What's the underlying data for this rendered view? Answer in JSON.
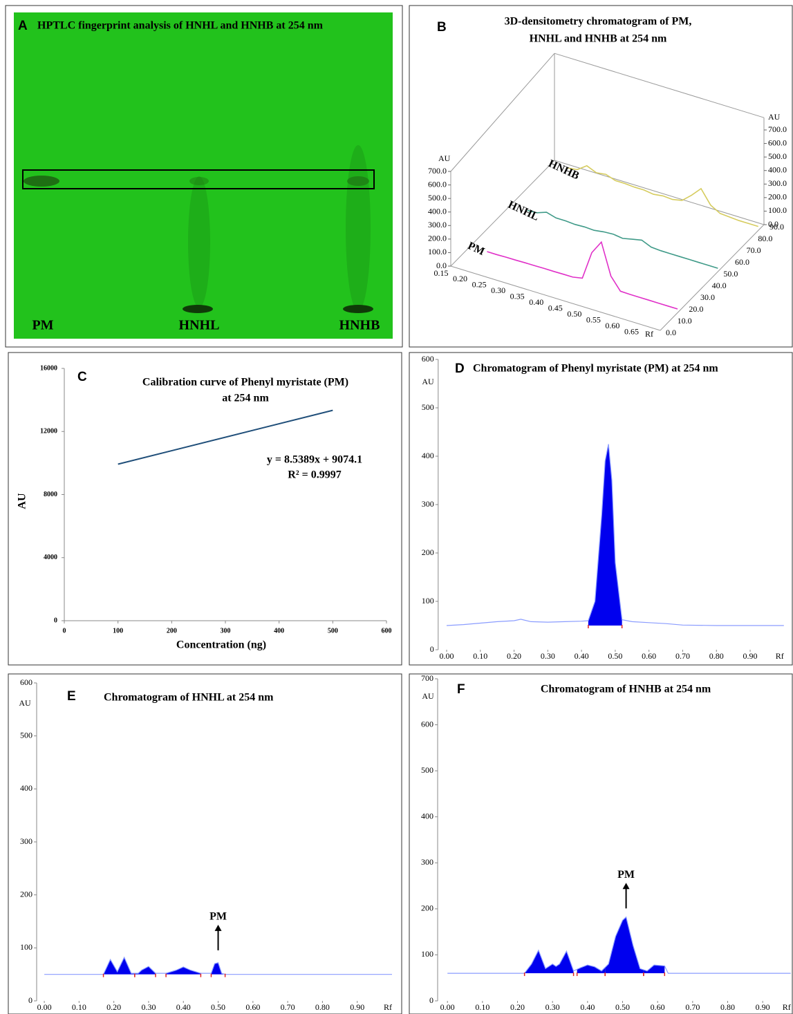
{
  "plate": {
    "letter": "A",
    "title": "HPTLC fingerprint analysis of HNHL and HNHB at 254 nm",
    "lanes": [
      "PM",
      "HNHL",
      "HNHB"
    ]
  },
  "chart_data": [
    {
      "type": "line3d",
      "letter": "B",
      "title": [
        "3D-densitometry chromatogram of PM,",
        "HNHL and HNHB at 254 nm"
      ],
      "ylabel": "AU",
      "xlabel": "Rf",
      "x": [
        0.15,
        0.175,
        0.2,
        0.225,
        0.25,
        0.275,
        0.3,
        0.325,
        0.35,
        0.375,
        0.4,
        0.425,
        0.45,
        0.475,
        0.5,
        0.525,
        0.55,
        0.575,
        0.6,
        0.625,
        0.65,
        0.675,
        0.7
      ],
      "xlim": [
        0.15,
        0.7
      ],
      "xticks": [
        0.15,
        {
          "value": 0.2,
          "label": "0.20"
        },
        0.25,
        {
          "value": 0.3,
          "label": "0.30"
        },
        0.35,
        {
          "value": 0.4,
          "label": "0.40"
        },
        0.45,
        {
          "value": 0.5,
          "label": "0.50"
        },
        0.55,
        {
          "value": 0.6,
          "label": "0.60"
        },
        0.65
      ],
      "ylim": [
        0,
        700
      ],
      "yticks": [
        {
          "value": 0,
          "label": "0.0"
        },
        {
          "value": 100,
          "label": "100.0"
        },
        {
          "value": 200,
          "label": "200.0"
        },
        {
          "value": 300,
          "label": "300.0"
        },
        {
          "value": 400,
          "label": "400.0"
        },
        {
          "value": 500,
          "label": "500.0"
        },
        {
          "value": 600,
          "label": "600.0"
        },
        {
          "value": 700,
          "label": "700.0"
        }
      ],
      "zlim": [
        0,
        90
      ],
      "zticks": [
        {
          "value": 0,
          "label": "0.0"
        },
        {
          "value": 10,
          "label": "10.0"
        },
        {
          "value": 20,
          "label": "20.0"
        },
        {
          "value": 30,
          "label": "30.0"
        },
        {
          "value": 40,
          "label": "40.0"
        },
        {
          "value": 50,
          "label": "50.0"
        },
        {
          "value": 60,
          "label": "60.0"
        },
        {
          "value": 70,
          "label": "70.0"
        },
        {
          "value": 80,
          "label": "80.0"
        },
        {
          "value": 90,
          "label": "90.0"
        }
      ],
      "series": [
        {
          "name": "PM",
          "color": "#e030c8",
          "z": 15,
          "values": [
            null,
            null,
            20,
            20,
            22,
            22,
            24,
            24,
            25,
            25,
            26,
            26,
            40,
            250,
            350,
            120,
            30,
            28,
            28,
            28,
            28,
            28,
            28
          ]
        },
        {
          "name": "HNHL",
          "color": "#3f9a88",
          "z": 50,
          "values": [
            null,
            null,
            20,
            25,
            50,
            30,
            30,
            25,
            28,
            25,
            35,
            40,
            30,
            45,
            60,
            30,
            25,
            25,
            25,
            25,
            25,
            25,
            25
          ]
        },
        {
          "name": "HNHB",
          "color": "#d6cc5e",
          "z": 85,
          "values": [
            null,
            null,
            30,
            40,
            90,
            60,
            70,
            45,
            45,
            40,
            40,
            30,
            40,
            35,
            50,
            110,
            180,
            80,
            40,
            35,
            30,
            30,
            30
          ]
        }
      ]
    },
    {
      "type": "line",
      "letter": "C",
      "title": [
        "Calibration curve of Phenyl myristate (PM)",
        "at 254 nm"
      ],
      "xlabel": "Concentration (ng)",
      "ylabel": "AU",
      "x": [
        100,
        500
      ],
      "xlim": [
        0,
        600
      ],
      "xticks": [
        0,
        100,
        200,
        300,
        400,
        500,
        600
      ],
      "ylim": [
        0,
        16000
      ],
      "yticks": [
        0,
        4000,
        8000,
        12000,
        16000
      ],
      "series": [
        {
          "color": "#1f4e79",
          "values": [
            9928,
            13344
          ]
        }
      ],
      "annotations": [
        "y = 8.5389x + 9074.1",
        "R² = 0.9997"
      ]
    },
    {
      "type": "chromatogram",
      "letter": "D",
      "title": "Chromatogram of Phenyl myristate (PM) at 254 nm",
      "ylabel": "AU",
      "xlabel": "Rf",
      "color": "#8a9cff",
      "fill_color": "#0000ee",
      "baseline": 50,
      "x": [
        0,
        0.05,
        0.1,
        0.15,
        0.2,
        0.22,
        0.25,
        0.3,
        0.35,
        0.4,
        0.42,
        0.44,
        0.46,
        0.47,
        0.48,
        0.49,
        0.5,
        0.52,
        0.55,
        0.6,
        0.65,
        0.7,
        0.8,
        0.9,
        1.0
      ],
      "values": [
        50,
        52,
        55,
        58,
        60,
        63,
        58,
        57,
        58,
        59,
        60,
        100,
        280,
        390,
        425,
        350,
        180,
        62,
        58,
        56,
        54,
        51,
        50,
        50,
        50
      ],
      "peaks": [
        [
          0.42,
          0.52
        ]
      ],
      "xlim": [
        -0.025,
        1.0
      ],
      "xticks": [
        {
          "value": 0,
          "label": "0.00"
        },
        {
          "value": 0.1,
          "label": "0.10"
        },
        {
          "value": 0.2,
          "label": "0.20"
        },
        {
          "value": 0.3,
          "label": "0.30"
        },
        {
          "value": 0.4,
          "label": "0.40"
        },
        {
          "value": 0.5,
          "label": "0.50"
        },
        {
          "value": 0.6,
          "label": "0.60"
        },
        {
          "value": 0.7,
          "label": "0.70"
        },
        {
          "value": 0.8,
          "label": "0.80"
        },
        {
          "value": 0.9,
          "label": "0.90"
        }
      ],
      "ylim": [
        0,
        600
      ],
      "yticks": [
        0,
        100,
        200,
        300,
        400,
        500,
        600
      ]
    },
    {
      "type": "chromatogram",
      "letter": "E",
      "title": "Chromatogram of HNHL at 254 nm",
      "ylabel": "AU",
      "xlabel": "Rf",
      "color": "#8a9cff",
      "fill_color": "#0000ee",
      "baseline": 50,
      "x": [
        0,
        0.1,
        0.17,
        0.19,
        0.21,
        0.23,
        0.25,
        0.27,
        0.28,
        0.3,
        0.32,
        0.35,
        0.38,
        0.4,
        0.42,
        0.45,
        0.48,
        0.49,
        0.5,
        0.51,
        0.52,
        0.6,
        0.8,
        1.0
      ],
      "values": [
        50,
        50,
        50,
        78,
        55,
        82,
        52,
        52,
        58,
        65,
        52,
        52,
        58,
        64,
        58,
        52,
        52,
        70,
        72,
        52,
        50,
        50,
        50,
        50
      ],
      "peaks": [
        [
          0.17,
          0.26
        ],
        [
          0.26,
          0.32
        ],
        [
          0.35,
          0.45
        ],
        [
          0.48,
          0.52
        ]
      ],
      "annotation": {
        "text": "PM",
        "x": 0.5,
        "y": 158
      },
      "xlim": [
        -0.022,
        1.0
      ],
      "xticks": [
        {
          "value": 0,
          "label": "0.00"
        },
        {
          "value": 0.1,
          "label": "0.10"
        },
        {
          "value": 0.2,
          "label": "0.20"
        },
        {
          "value": 0.3,
          "label": "0.30"
        },
        {
          "value": 0.4,
          "label": "0.40"
        },
        {
          "value": 0.5,
          "label": "0.50"
        },
        {
          "value": 0.6,
          "label": "0.60"
        },
        {
          "value": 0.7,
          "label": "0.70"
        },
        {
          "value": 0.8,
          "label": "0.80"
        },
        {
          "value": 0.9,
          "label": "0.90"
        }
      ],
      "ylim": [
        0,
        600
      ],
      "yticks": [
        0,
        100,
        200,
        300,
        400,
        500,
        600
      ]
    },
    {
      "type": "chromatogram",
      "letter": "F",
      "title": "Chromatogram of HNHB at 254 nm",
      "ylabel": "AU",
      "xlabel": "Rf",
      "color": "#8a9cff",
      "fill_color": "#0000ee",
      "baseline": 60,
      "x": [
        0,
        0.1,
        0.22,
        0.24,
        0.26,
        0.28,
        0.3,
        0.31,
        0.32,
        0.34,
        0.36,
        0.38,
        0.4,
        0.42,
        0.44,
        0.46,
        0.48,
        0.5,
        0.51,
        0.53,
        0.55,
        0.57,
        0.59,
        0.62,
        0.63,
        0.8,
        0.98
      ],
      "values": [
        60,
        60,
        60,
        80,
        110,
        70,
        80,
        75,
        80,
        108,
        65,
        72,
        78,
        74,
        65,
        80,
        140,
        175,
        182,
        120,
        70,
        65,
        78,
        76,
        60,
        60,
        60
      ],
      "peaks": [
        [
          0.22,
          0.36
        ],
        [
          0.37,
          0.45
        ],
        [
          0.45,
          0.56
        ],
        [
          0.56,
          0.62
        ]
      ],
      "annotation": {
        "text": "PM",
        "x": 0.51,
        "y": 273
      },
      "xlim": [
        -0.028,
        0.98
      ],
      "xticks": [
        {
          "value": 0,
          "label": "0.00"
        },
        {
          "value": 0.1,
          "label": "0.10"
        },
        {
          "value": 0.2,
          "label": "0.20"
        },
        {
          "value": 0.3,
          "label": "0.30"
        },
        {
          "value": 0.4,
          "label": "0.40"
        },
        {
          "value": 0.5,
          "label": "0.50"
        },
        {
          "value": 0.6,
          "label": "0.60"
        },
        {
          "value": 0.7,
          "label": "0.70"
        },
        {
          "value": 0.8,
          "label": "0.80"
        },
        {
          "value": 0.9,
          "label": "0.90"
        }
      ],
      "ylim": [
        0,
        700
      ],
      "yticks": [
        0,
        100,
        200,
        300,
        400,
        500,
        600,
        700
      ]
    }
  ]
}
